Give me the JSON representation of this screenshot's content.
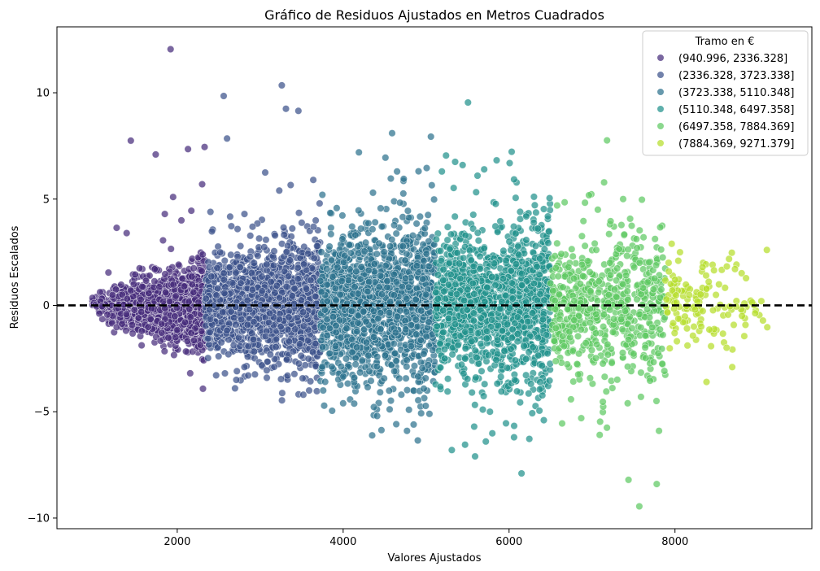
{
  "chart_data": {
    "type": "scatter",
    "title": "Gráfico de Residuos Ajustados en Metros Cuadrados",
    "xlabel": "Valores Ajustados",
    "ylabel": "Residuos Escalados",
    "xlim": [
      550,
      9650
    ],
    "ylim": [
      -10.5,
      13.1
    ],
    "xticks": [
      2000,
      4000,
      6000,
      8000
    ],
    "xtick_labels": [
      "2000",
      "4000",
      "6000",
      "8000"
    ],
    "yticks": [
      -10,
      -5,
      0,
      5,
      10
    ],
    "ytick_labels": [
      "−10",
      "−5",
      "0",
      "5",
      "10"
    ],
    "grid": false,
    "reference_line": {
      "y": 0,
      "style": "dashed",
      "color": "#000000"
    },
    "legend": {
      "title": "Tramo en €",
      "placement": "top-right",
      "entries": [
        "(940.996, 2336.328]",
        "(2336.328, 3723.338]",
        "(3723.338, 5110.348]",
        "(5110.348, 6497.358]",
        "(6497.358, 7884.369]",
        "(7884.369, 9271.379]"
      ]
    },
    "series": [
      {
        "name": "(940.996, 2336.328]",
        "color": "#472d7b",
        "x_range": [
          940.996,
          2336.328
        ],
        "density": 1400,
        "base_sd": 0.3,
        "sd_slope": 0.00045,
        "outliers": [
          [
            1920,
            12.05
          ],
          [
            1440,
            7.75
          ],
          [
            1740,
            7.1
          ],
          [
            2130,
            7.35
          ],
          [
            2330,
            7.45
          ],
          [
            2300,
            5.7
          ],
          [
            1950,
            5.1
          ],
          [
            2170,
            4.45
          ],
          [
            1850,
            4.3
          ],
          [
            1270,
            3.65
          ],
          [
            1390,
            3.4
          ],
          [
            2050,
            4.0
          ]
        ]
      },
      {
        "name": "(2336.328, 3723.338]",
        "color": "#3b528b",
        "x_range": [
          2336.328,
          3723.338
        ],
        "density": 1500,
        "base_sd": 1.0,
        "sd_slope": 0.0004,
        "outliers": [
          [
            3260,
            10.35
          ],
          [
            2560,
            9.85
          ],
          [
            3310,
            9.25
          ],
          [
            3460,
            9.15
          ],
          [
            2600,
            7.85
          ],
          [
            3060,
            6.25
          ],
          [
            2400,
            4.4
          ],
          [
            2810,
            4.3
          ],
          [
            3230,
            5.4
          ],
          [
            3640,
            5.9
          ],
          [
            3590,
            -4.0
          ],
          [
            3520,
            -4.2
          ],
          [
            2810,
            -2.9
          ],
          [
            3080,
            -3.4
          ],
          [
            3330,
            -3.3
          ]
        ]
      },
      {
        "name": "(3723.338, 5110.348]",
        "color": "#2c728e",
        "x_range": [
          3723.338,
          5110.348
        ],
        "density": 1500,
        "base_sd": 1.5,
        "sd_slope": 0.0004,
        "outliers": [
          [
            4590,
            8.1
          ],
          [
            4190,
            7.2
          ],
          [
            4510,
            6.95
          ],
          [
            4650,
            6.3
          ],
          [
            4730,
            5.95
          ],
          [
            4360,
            5.3
          ],
          [
            3750,
            5.2
          ],
          [
            4410,
            -5.2
          ],
          [
            4770,
            -5.9
          ],
          [
            4900,
            -6.35
          ],
          [
            4850,
            -5.6
          ],
          [
            3760,
            -4.0
          ],
          [
            4000,
            -4.6
          ],
          [
            5040,
            -5.1
          ]
        ]
      },
      {
        "name": "(5110.348, 6497.358]",
        "color": "#21918c",
        "x_range": [
          5110.348,
          6497.358
        ],
        "density": 1400,
        "base_sd": 1.5,
        "sd_slope": 0.0004,
        "outliers": [
          [
            5240,
            7.05
          ],
          [
            5350,
            6.75
          ],
          [
            5440,
            6.6
          ],
          [
            5700,
            6.4
          ],
          [
            5620,
            6.1
          ],
          [
            5190,
            6.3
          ],
          [
            6150,
            -7.9
          ],
          [
            5590,
            -7.1
          ],
          [
            5470,
            -6.55
          ],
          [
            5310,
            -6.8
          ],
          [
            6060,
            -6.2
          ],
          [
            5580,
            -5.7
          ],
          [
            5720,
            -6.4
          ],
          [
            5770,
            -5.0
          ]
        ]
      },
      {
        "name": "(6497.358, 7884.369]",
        "color": "#5ec962",
        "x_range": [
          6497.358,
          7884.369
        ],
        "density": 600,
        "base_sd": 1.45,
        "sd_slope": 0.0003,
        "outliers": [
          [
            7570,
            -9.45
          ],
          [
            7440,
            -8.2
          ],
          [
            7780,
            -8.4
          ],
          [
            7180,
            -5.75
          ],
          [
            6870,
            -5.3
          ],
          [
            6640,
            -5.55
          ],
          [
            7590,
            -4.3
          ],
          [
            7430,
            -4.6
          ],
          [
            6670,
            4.85
          ],
          [
            7070,
            4.5
          ],
          [
            6580,
            4.7
          ]
        ]
      },
      {
        "name": "(7884.369, 9271.379]",
        "color": "#b5de2b",
        "x_range": [
          7884.369,
          9271.379
        ],
        "density": 140,
        "base_sd": 0.85,
        "sd_slope": 0.0003,
        "outliers": [
          [
            8380,
            -3.6
          ],
          [
            8690,
            -2.9
          ],
          [
            7960,
            2.9
          ],
          [
            8060,
            2.5
          ],
          [
            8470,
            1.65
          ],
          [
            8040,
            2.1
          ]
        ]
      }
    ]
  }
}
